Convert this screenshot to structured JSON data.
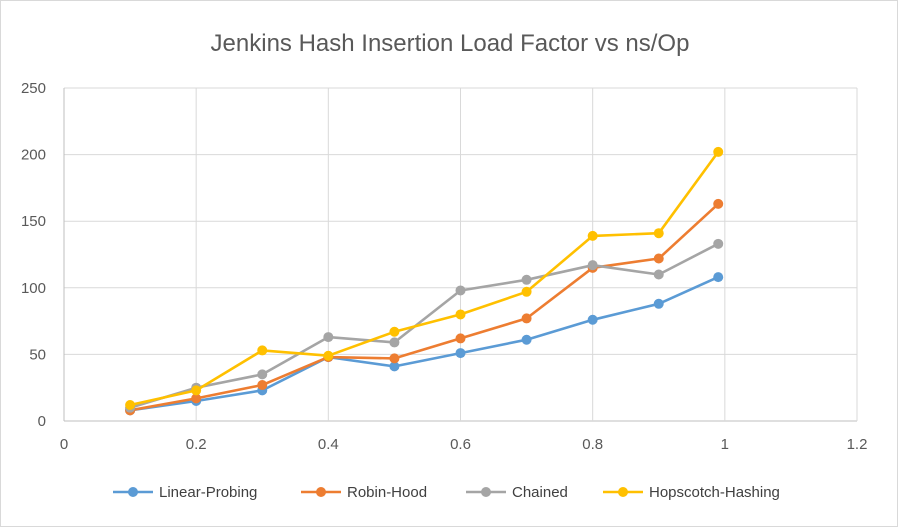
{
  "chart_data": {
    "type": "line",
    "title": "Jenkins Hash Insertion Load Factor vs ns/Op",
    "xlabel": "",
    "ylabel": "",
    "xlim": [
      0,
      1.2
    ],
    "ylim": [
      0,
      250
    ],
    "x_ticks": [
      "0",
      "0.2",
      "0.4",
      "0.6",
      "0.8",
      "1",
      "1.2"
    ],
    "y_ticks": [
      "0",
      "50",
      "100",
      "150",
      "200",
      "250"
    ],
    "grid": true,
    "legend_position": "bottom",
    "x": [
      0.1,
      0.2,
      0.3,
      0.4,
      0.5,
      0.6,
      0.7,
      0.8,
      0.9,
      0.99
    ],
    "series": [
      {
        "name": "Linear-Probing",
        "color": "#5b9bd5",
        "values": [
          8,
          15,
          23,
          48,
          41,
          51,
          61,
          76,
          88,
          108
        ]
      },
      {
        "name": "Robin-Hood",
        "color": "#ed7d31",
        "values": [
          8,
          17,
          27,
          48,
          47,
          62,
          77,
          115,
          122,
          163
        ]
      },
      {
        "name": "Chained",
        "color": "#a5a5a5",
        "values": [
          10,
          25,
          35,
          63,
          59,
          98,
          106,
          117,
          110,
          133
        ]
      },
      {
        "name": "Hopscotch-Hashing",
        "color": "#ffc000",
        "values": [
          12,
          23,
          53,
          49,
          67,
          80,
          97,
          139,
          141,
          202
        ]
      }
    ]
  }
}
